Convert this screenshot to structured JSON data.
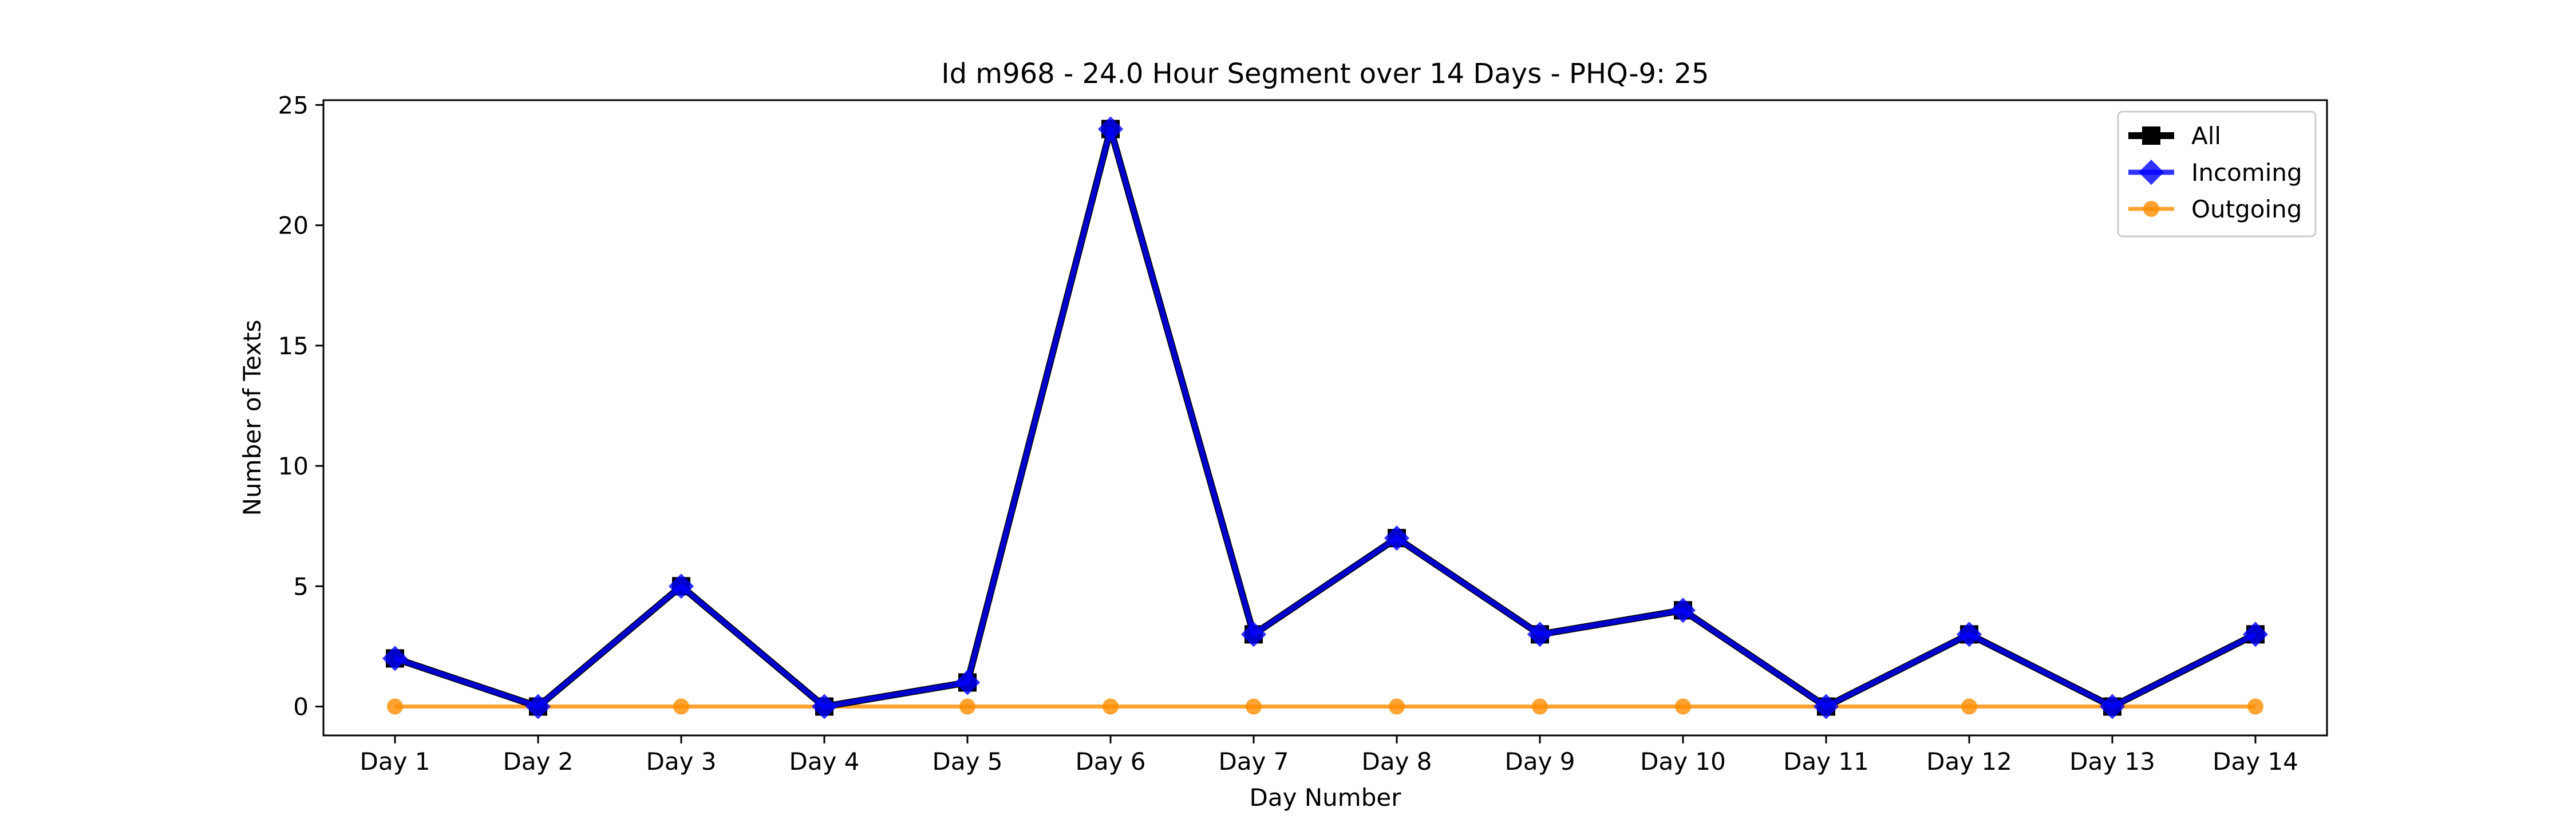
{
  "chart_data": {
    "type": "line",
    "title": "Id m968 - 24.0 Hour Segment over 14 Days - PHQ-9: 25",
    "xlabel": "Day Number",
    "ylabel": "Number of Texts",
    "categories": [
      "Day 1",
      "Day 2",
      "Day 3",
      "Day 4",
      "Day 5",
      "Day 6",
      "Day 7",
      "Day 8",
      "Day 9",
      "Day 10",
      "Day 11",
      "Day 12",
      "Day 13",
      "Day 14"
    ],
    "ylim": [
      -1.2,
      25.2
    ],
    "yticks": [
      0,
      5,
      10,
      15,
      20,
      25
    ],
    "grid": false,
    "legend_position": "top-right",
    "series": [
      {
        "name": "All",
        "color": "#000000",
        "marker": "square",
        "values": [
          2,
          0,
          5,
          0,
          1,
          24,
          3,
          7,
          3,
          4,
          0,
          3,
          0,
          3
        ]
      },
      {
        "name": "Incoming",
        "color": "#0000ff",
        "marker": "diamond",
        "values": [
          2,
          0,
          5,
          0,
          1,
          24,
          3,
          7,
          3,
          4,
          0,
          3,
          0,
          3
        ]
      },
      {
        "name": "Outgoing",
        "color": "#ff8c00",
        "marker": "circle",
        "values": [
          0,
          0,
          0,
          0,
          0,
          0,
          0,
          0,
          0,
          0,
          0,
          0,
          0,
          0
        ]
      }
    ]
  }
}
